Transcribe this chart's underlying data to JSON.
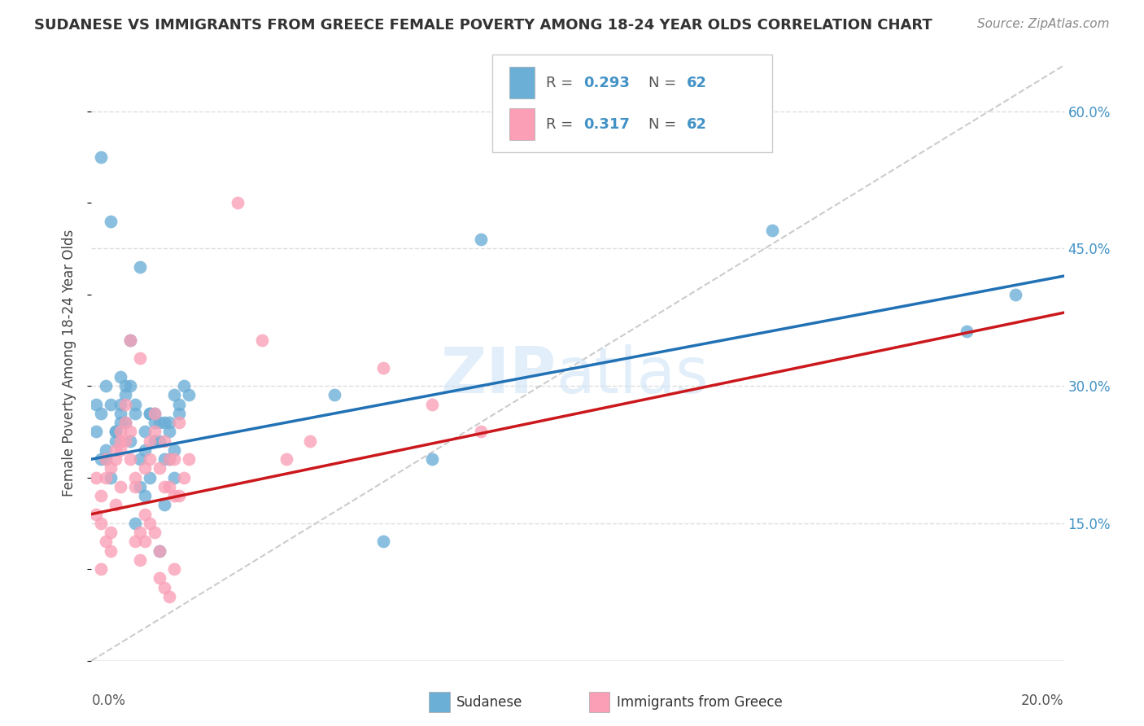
{
  "title": "SUDANESE VS IMMIGRANTS FROM GREECE FEMALE POVERTY AMONG 18-24 YEAR OLDS CORRELATION CHART",
  "source": "Source: ZipAtlas.com",
  "ylabel": "Female Poverty Among 18-24 Year Olds",
  "color_blue": "#6baed6",
  "color_pink": "#fa9fb5",
  "color_blue_line": "#2171b5",
  "color_pink_line": "#cb181d",
  "legend_r1": "0.293",
  "legend_n1": "62",
  "legend_r2": "0.317",
  "legend_n2": "62",
  "blue_scatter_x": [
    0.001,
    0.002,
    0.001,
    0.003,
    0.002,
    0.004,
    0.003,
    0.005,
    0.006,
    0.004,
    0.003,
    0.005,
    0.002,
    0.004,
    0.006,
    0.007,
    0.008,
    0.005,
    0.006,
    0.007,
    0.008,
    0.009,
    0.01,
    0.007,
    0.008,
    0.006,
    0.009,
    0.011,
    0.012,
    0.013,
    0.01,
    0.011,
    0.009,
    0.012,
    0.013,
    0.014,
    0.015,
    0.011,
    0.012,
    0.01,
    0.013,
    0.014,
    0.015,
    0.016,
    0.017,
    0.018,
    0.014,
    0.015,
    0.016,
    0.017,
    0.019,
    0.02,
    0.016,
    0.017,
    0.018,
    0.05,
    0.06,
    0.07,
    0.08,
    0.14,
    0.18,
    0.19
  ],
  "blue_scatter_y": [
    0.25,
    0.22,
    0.28,
    0.3,
    0.27,
    0.2,
    0.23,
    0.24,
    0.26,
    0.28,
    0.22,
    0.25,
    0.55,
    0.48,
    0.27,
    0.3,
    0.35,
    0.25,
    0.28,
    0.26,
    0.24,
    0.27,
    0.43,
    0.29,
    0.3,
    0.31,
    0.28,
    0.25,
    0.27,
    0.26,
    0.22,
    0.23,
    0.15,
    0.2,
    0.24,
    0.26,
    0.26,
    0.18,
    0.27,
    0.19,
    0.27,
    0.24,
    0.22,
    0.25,
    0.2,
    0.28,
    0.12,
    0.17,
    0.26,
    0.23,
    0.3,
    0.29,
    0.22,
    0.29,
    0.27,
    0.29,
    0.13,
    0.22,
    0.46,
    0.47,
    0.36,
    0.4
  ],
  "pink_scatter_x": [
    0.001,
    0.002,
    0.001,
    0.003,
    0.002,
    0.004,
    0.003,
    0.005,
    0.006,
    0.004,
    0.003,
    0.005,
    0.002,
    0.004,
    0.006,
    0.007,
    0.008,
    0.005,
    0.006,
    0.007,
    0.008,
    0.009,
    0.01,
    0.007,
    0.008,
    0.006,
    0.009,
    0.011,
    0.012,
    0.013,
    0.01,
    0.011,
    0.009,
    0.012,
    0.013,
    0.014,
    0.015,
    0.011,
    0.012,
    0.01,
    0.013,
    0.014,
    0.015,
    0.016,
    0.017,
    0.018,
    0.014,
    0.015,
    0.016,
    0.017,
    0.019,
    0.02,
    0.016,
    0.017,
    0.018,
    0.03,
    0.035,
    0.04,
    0.045,
    0.06,
    0.07,
    0.08
  ],
  "pink_scatter_y": [
    0.2,
    0.18,
    0.16,
    0.22,
    0.15,
    0.14,
    0.13,
    0.17,
    0.19,
    0.21,
    0.2,
    0.22,
    0.1,
    0.12,
    0.24,
    0.28,
    0.35,
    0.23,
    0.25,
    0.24,
    0.22,
    0.19,
    0.33,
    0.26,
    0.25,
    0.23,
    0.2,
    0.21,
    0.24,
    0.27,
    0.14,
    0.16,
    0.13,
    0.15,
    0.14,
    0.12,
    0.24,
    0.13,
    0.22,
    0.11,
    0.25,
    0.21,
    0.19,
    0.22,
    0.18,
    0.26,
    0.09,
    0.08,
    0.07,
    0.1,
    0.2,
    0.22,
    0.19,
    0.22,
    0.18,
    0.5,
    0.35,
    0.22,
    0.24,
    0.32,
    0.28,
    0.25
  ],
  "xlim": [
    0,
    0.2
  ],
  "ylim": [
    0,
    0.65
  ],
  "yvals": [
    0.15,
    0.3,
    0.45,
    0.6
  ],
  "blue_line_y0": 0.22,
  "blue_line_y1": 0.42,
  "pink_line_y0": 0.16,
  "pink_line_y1": 0.38
}
